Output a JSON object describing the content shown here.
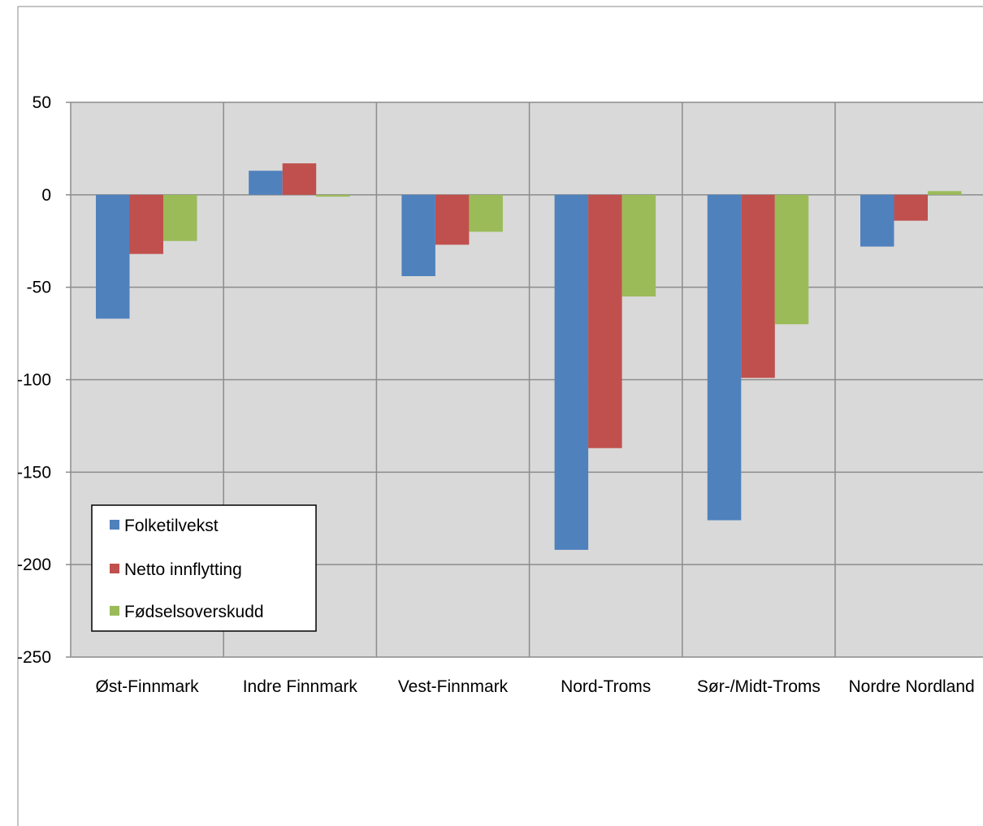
{
  "chart_data": {
    "type": "bar",
    "title": "",
    "xlabel": "",
    "ylabel": "",
    "categories": [
      "Øst-Finnmark",
      "Indre Finnmark",
      "Vest-Finnmark",
      "Nord-Troms",
      "Sør-/Midt-Troms",
      "Nordre Nordland"
    ],
    "series": [
      {
        "name": "Folketilvekst",
        "color": "#4F81BD",
        "values": [
          -67,
          13,
          -44,
          -192,
          -176,
          -28
        ]
      },
      {
        "name": "Netto innflytting",
        "color": "#C0504D",
        "values": [
          -32,
          17,
          -27,
          -137,
          -99,
          -14
        ]
      },
      {
        "name": "Fødselsoverskudd",
        "color": "#9BBB59",
        "values": [
          -25,
          -1,
          -20,
          -55,
          -70,
          2
        ]
      }
    ],
    "ylim": [
      -250,
      50
    ],
    "yticks": [
      50,
      0,
      -50,
      -100,
      -150,
      -200,
      -250
    ],
    "grid": true,
    "legend_position": "bottom-left",
    "plot_background": "#D9D9D9",
    "gridline_color": "#8C8C8C"
  }
}
